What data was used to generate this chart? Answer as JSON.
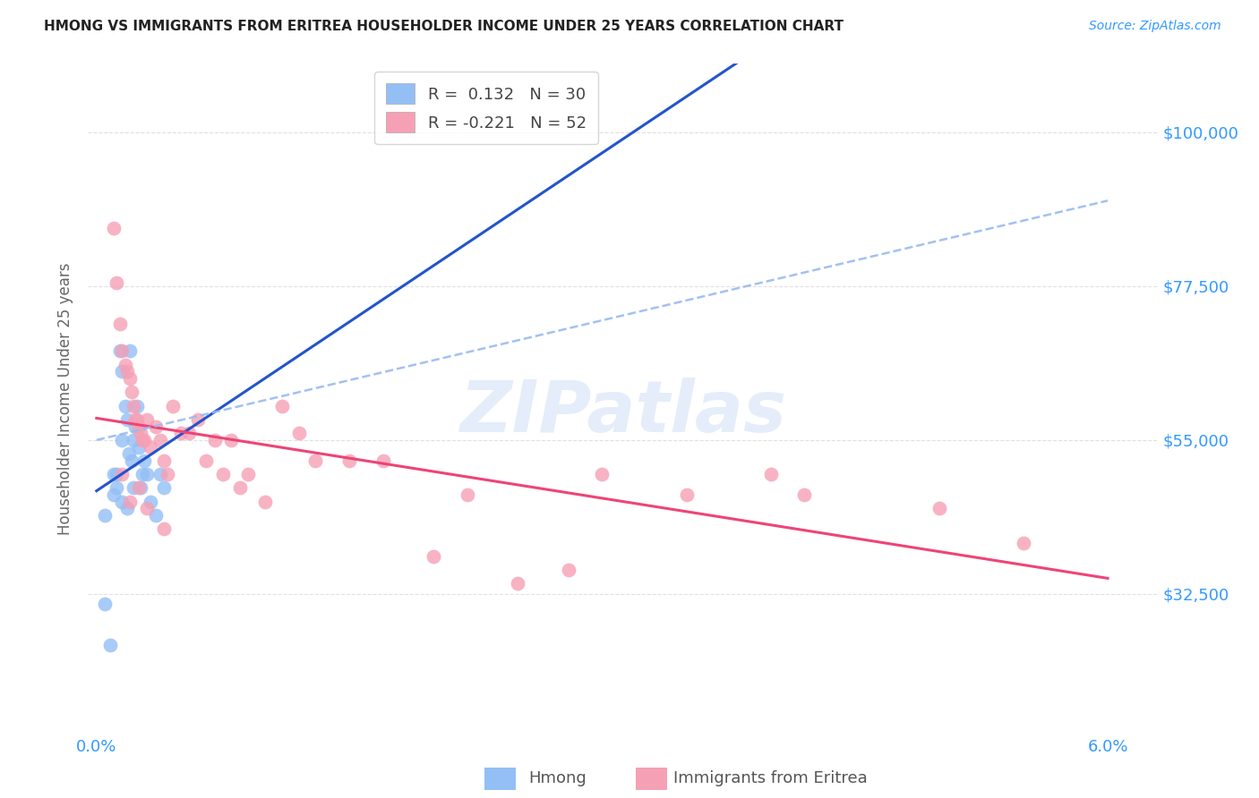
{
  "title": "HMONG VS IMMIGRANTS FROM ERITREA HOUSEHOLDER INCOME UNDER 25 YEARS CORRELATION CHART",
  "source": "Source: ZipAtlas.com",
  "ylabel": "Householder Income Under 25 years",
  "ytick_labels": [
    "$100,000",
    "$77,500",
    "$55,000",
    "$32,500"
  ],
  "ytick_vals": [
    100000,
    77500,
    55000,
    32500
  ],
  "ylim": [
    12000,
    110000
  ],
  "xlim": [
    -0.05,
    6.3
  ],
  "hmong_color": "#93bff5",
  "eritrea_color": "#f5a0b5",
  "hmong_line_color": "#2255cc",
  "eritrea_line_color": "#ee4477",
  "dashed_line_color": "#99bbee",
  "background_color": "#ffffff",
  "grid_color": "#cccccc",
  "axis_label_color": "#3399ff",
  "title_color": "#222222",
  "watermark_text": "ZIPatlas",
  "hmong_x": [
    0.05,
    0.08,
    0.1,
    0.12,
    0.14,
    0.15,
    0.15,
    0.17,
    0.18,
    0.19,
    0.2,
    0.21,
    0.22,
    0.23,
    0.24,
    0.25,
    0.26,
    0.27,
    0.28,
    0.3,
    0.32,
    0.35,
    0.38,
    0.4,
    0.05,
    0.1,
    0.12,
    0.15,
    0.18,
    0.22
  ],
  "hmong_y": [
    31000,
    25000,
    47000,
    50000,
    68000,
    55000,
    65000,
    60000,
    58000,
    53000,
    68000,
    52000,
    55000,
    57000,
    60000,
    54000,
    48000,
    50000,
    52000,
    50000,
    46000,
    44000,
    50000,
    48000,
    44000,
    50000,
    48000,
    46000,
    45000,
    48000
  ],
  "eritrea_x": [
    0.1,
    0.12,
    0.14,
    0.15,
    0.17,
    0.18,
    0.2,
    0.21,
    0.22,
    0.23,
    0.24,
    0.25,
    0.26,
    0.27,
    0.28,
    0.3,
    0.32,
    0.35,
    0.38,
    0.4,
    0.42,
    0.45,
    0.5,
    0.55,
    0.6,
    0.65,
    0.7,
    0.75,
    0.8,
    0.85,
    0.9,
    1.0,
    1.1,
    1.2,
    1.3,
    1.5,
    1.7,
    2.0,
    2.2,
    2.5,
    2.8,
    3.0,
    3.5,
    4.0,
    4.2,
    5.0,
    5.5,
    0.15,
    0.2,
    0.25,
    0.3,
    0.4
  ],
  "eritrea_y": [
    86000,
    78000,
    72000,
    68000,
    66000,
    65000,
    64000,
    62000,
    60000,
    58000,
    58000,
    57000,
    56000,
    55000,
    55000,
    58000,
    54000,
    57000,
    55000,
    52000,
    50000,
    60000,
    56000,
    56000,
    58000,
    52000,
    55000,
    50000,
    55000,
    48000,
    50000,
    46000,
    60000,
    56000,
    52000,
    52000,
    52000,
    38000,
    47000,
    34000,
    36000,
    50000,
    47000,
    50000,
    47000,
    45000,
    40000,
    50000,
    46000,
    48000,
    45000,
    42000
  ],
  "hmong_R": 0.132,
  "hmong_N": 30,
  "eritrea_R": -0.221,
  "eritrea_N": 52,
  "dashed_line_y0": 55000,
  "dashed_line_y1": 90000
}
